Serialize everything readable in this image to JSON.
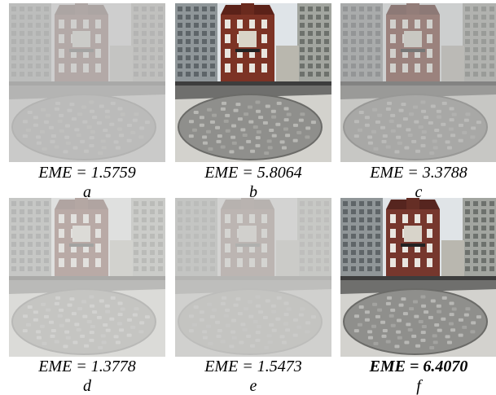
{
  "figure": {
    "panels": [
      {
        "id": "a",
        "eme_text": "EME = 1.5759",
        "label": "a",
        "bold": false,
        "style": {
          "fog": "#c8c8c6",
          "fog_opacity": 0.78,
          "saturation": 0.55
        }
      },
      {
        "id": "b",
        "eme_text": "EME = 5.8064",
        "label": "b",
        "bold": false,
        "style": {
          "fog": "#ffffff",
          "fog_opacity": 0.0,
          "saturation": 1.0
        }
      },
      {
        "id": "c",
        "eme_text": "EME = 3.3788",
        "label": "c",
        "bold": false,
        "style": {
          "fog": "#bdbdbb",
          "fog_opacity": 0.55,
          "saturation": 0.75
        }
      },
      {
        "id": "d",
        "eme_text": "EME = 1.3778",
        "label": "d",
        "bold": false,
        "style": {
          "fog": "#dededc",
          "fog_opacity": 0.68,
          "saturation": 0.6
        }
      },
      {
        "id": "e",
        "eme_text": "EME = 1.5473",
        "label": "e",
        "bold": false,
        "style": {
          "fog": "#cfcfcd",
          "fog_opacity": 0.82,
          "saturation": 0.5
        }
      },
      {
        "id": "f",
        "eme_text": "EME = 6.4070",
        "label": "f",
        "bold": true,
        "style": {
          "fog": "#ffffff",
          "fog_opacity": 0.0,
          "saturation": 0.85
        }
      }
    ]
  }
}
